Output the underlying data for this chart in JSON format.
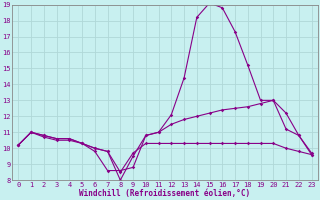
{
  "xlabel": "Windchill (Refroidissement éolien,°C)",
  "xlim": [
    -0.5,
    23.5
  ],
  "ylim": [
    8,
    19
  ],
  "xticks": [
    0,
    1,
    2,
    3,
    4,
    5,
    6,
    7,
    8,
    9,
    10,
    11,
    12,
    13,
    14,
    15,
    16,
    17,
    18,
    19,
    20,
    21,
    22,
    23
  ],
  "yticks": [
    8,
    9,
    10,
    11,
    12,
    13,
    14,
    15,
    16,
    17,
    18,
    19
  ],
  "bg_color": "#c8f0f0",
  "line_color": "#880088",
  "grid_color": "#b0d8d8",
  "line1_x": [
    0,
    1,
    2,
    3,
    4,
    5,
    6,
    7,
    8,
    9,
    10,
    11,
    12,
    13,
    14,
    15,
    16,
    17,
    18,
    19,
    20,
    21,
    22,
    23
  ],
  "line1_y": [
    10.2,
    11.0,
    10.8,
    10.6,
    10.6,
    10.3,
    9.8,
    8.6,
    8.6,
    8.8,
    10.8,
    11.0,
    12.1,
    14.4,
    18.2,
    19.1,
    18.8,
    17.3,
    15.2,
    13.0,
    13.0,
    11.2,
    10.8,
    9.7
  ],
  "line2_x": [
    0,
    1,
    2,
    3,
    4,
    5,
    6,
    7,
    8,
    9,
    10,
    11,
    12,
    13,
    14,
    15,
    16,
    17,
    18,
    19,
    20,
    21,
    22,
    23
  ],
  "line2_y": [
    10.2,
    11.0,
    10.8,
    10.6,
    10.6,
    10.3,
    10.0,
    9.8,
    8.0,
    9.5,
    10.8,
    11.0,
    11.5,
    11.8,
    12.0,
    12.2,
    12.4,
    12.5,
    12.6,
    12.8,
    13.0,
    12.2,
    10.8,
    9.6
  ],
  "line3_x": [
    0,
    1,
    2,
    3,
    4,
    5,
    6,
    7,
    8,
    9,
    10,
    11,
    12,
    13,
    14,
    15,
    16,
    17,
    18,
    19,
    20,
    21,
    22,
    23
  ],
  "line3_y": [
    10.2,
    11.0,
    10.7,
    10.5,
    10.5,
    10.3,
    10.0,
    9.8,
    8.5,
    9.7,
    10.3,
    10.3,
    10.3,
    10.3,
    10.3,
    10.3,
    10.3,
    10.3,
    10.3,
    10.3,
    10.3,
    10.0,
    9.8,
    9.6
  ],
  "marker_size": 1.8,
  "line_width": 0.8,
  "axis_fontsize": 5.5,
  "tick_fontsize": 5.0,
  "spine_color": "#888888"
}
